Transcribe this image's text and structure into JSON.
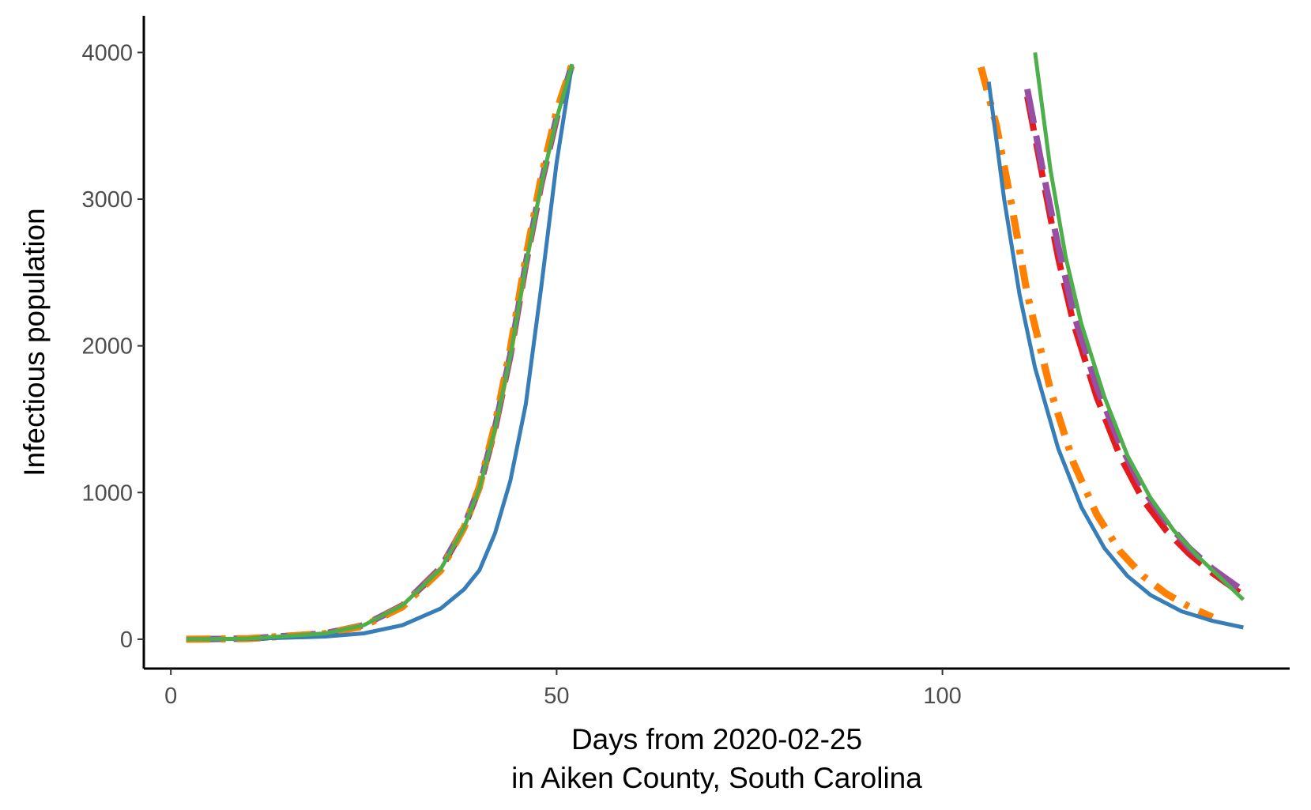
{
  "chart_data": {
    "type": "line",
    "title": "",
    "xlabel_line1": "Days from 2020-02-25",
    "xlabel_line2": "in Aiken County, South Carolina",
    "ylabel": "Infectious population",
    "xlim": [
      -3.5,
      145
    ],
    "ylim": [
      -200,
      4250
    ],
    "x_ticks": [
      0,
      50,
      100
    ],
    "y_ticks": [
      0,
      1000,
      2000,
      3000,
      4000
    ],
    "grid": false,
    "legend": "none",
    "series": [
      {
        "color": "#377EB8",
        "dash": "solid",
        "segments": [
          [
            [
              2,
              0
            ],
            [
              10,
              2
            ],
            [
              20,
              18
            ],
            [
              25,
              40
            ],
            [
              30,
              95
            ],
            [
              35,
              210
            ],
            [
              38,
              340
            ],
            [
              40,
              470
            ],
            [
              42,
              720
            ],
            [
              44,
              1080
            ],
            [
              46,
              1600
            ],
            [
              48,
              2400
            ],
            [
              50,
              3250
            ],
            [
              52,
              3920
            ]
          ],
          [
            [
              106,
              3800
            ],
            [
              108,
              3000
            ],
            [
              110,
              2350
            ],
            [
              112,
              1850
            ],
            [
              115,
              1300
            ],
            [
              118,
              900
            ],
            [
              121,
              620
            ],
            [
              124,
              430
            ],
            [
              127,
              300
            ],
            [
              131,
              190
            ],
            [
              135,
              125
            ],
            [
              139,
              80
            ]
          ]
        ]
      },
      {
        "color": "#E41A1C",
        "dash": "long-dash",
        "segments": [
          [
            [
              2,
              0
            ],
            [
              10,
              4
            ],
            [
              20,
              40
            ],
            [
              25,
              95
            ],
            [
              30,
              230
            ],
            [
              35,
              480
            ],
            [
              38,
              760
            ],
            [
              40,
              1030
            ],
            [
              42,
              1430
            ],
            [
              44,
              1930
            ],
            [
              46,
              2550
            ],
            [
              48,
              3100
            ],
            [
              50,
              3550
            ],
            [
              52,
              3920
            ]
          ],
          [
            [
              111,
              3700
            ],
            [
              113,
              3150
            ],
            [
              115,
              2600
            ],
            [
              117,
              2150
            ],
            [
              120,
              1650
            ],
            [
              123,
              1250
            ],
            [
              126,
              950
            ],
            [
              129,
              740
            ],
            [
              132,
              580
            ],
            [
              135,
              450
            ],
            [
              139,
              300
            ]
          ]
        ]
      },
      {
        "color": "#984EA3",
        "dash": "long-dash",
        "segments": [
          [
            [
              2,
              0
            ],
            [
              10,
              4
            ],
            [
              20,
              40
            ],
            [
              25,
              95
            ],
            [
              30,
              230
            ],
            [
              35,
              490
            ],
            [
              38,
              770
            ],
            [
              40,
              1040
            ],
            [
              42,
              1440
            ],
            [
              44,
              1940
            ],
            [
              46,
              2560
            ],
            [
              48,
              3110
            ],
            [
              50,
              3560
            ],
            [
              52,
              3920
            ]
          ],
          [
            [
              111,
              3750
            ],
            [
              113,
              3200
            ],
            [
              115,
              2680
            ],
            [
              117,
              2220
            ],
            [
              120,
              1720
            ],
            [
              123,
              1330
            ],
            [
              126,
              1020
            ],
            [
              129,
              800
            ],
            [
              132,
              620
            ],
            [
              135,
              480
            ],
            [
              139,
              330
            ]
          ]
        ]
      },
      {
        "color": "#FF7F00",
        "dash": "dash-dot",
        "segments": [
          [
            [
              2,
              0
            ],
            [
              10,
              4
            ],
            [
              20,
              38
            ],
            [
              25,
              90
            ],
            [
              30,
              220
            ],
            [
              35,
              470
            ],
            [
              38,
              760
            ],
            [
              40,
              1040
            ],
            [
              42,
              1460
            ],
            [
              44,
              1980
            ],
            [
              46,
              2600
            ],
            [
              48,
              3150
            ],
            [
              50,
              3600
            ],
            [
              52,
              3920
            ]
          ],
          [
            [
              105,
              3900
            ],
            [
              107,
              3500
            ],
            [
              109,
              2950
            ],
            [
              111,
              2350
            ],
            [
              114,
              1700
            ],
            [
              117,
              1200
            ],
            [
              120,
              850
            ],
            [
              123,
              600
            ],
            [
              126,
              430
            ],
            [
              129,
              310
            ],
            [
              132,
              220
            ],
            [
              135,
              150
            ]
          ]
        ]
      },
      {
        "color": "#4DAF4A",
        "dash": "solid",
        "segments": [
          [
            [
              2,
              0
            ],
            [
              10,
              4
            ],
            [
              20,
              40
            ],
            [
              25,
              95
            ],
            [
              30,
              230
            ],
            [
              35,
              480
            ],
            [
              38,
              760
            ],
            [
              40,
              1030
            ],
            [
              42,
              1430
            ],
            [
              44,
              1930
            ],
            [
              46,
              2550
            ],
            [
              48,
              3100
            ],
            [
              50,
              3550
            ],
            [
              52,
              3920
            ]
          ],
          [
            [
              112,
              4000
            ],
            [
              114,
              3200
            ],
            [
              116,
              2600
            ],
            [
              118,
              2150
            ],
            [
              121,
              1650
            ],
            [
              124,
              1250
            ],
            [
              127,
              960
            ],
            [
              130,
              740
            ],
            [
              133,
              570
            ],
            [
              136,
              420
            ],
            [
              139,
              270
            ]
          ]
        ]
      }
    ]
  }
}
